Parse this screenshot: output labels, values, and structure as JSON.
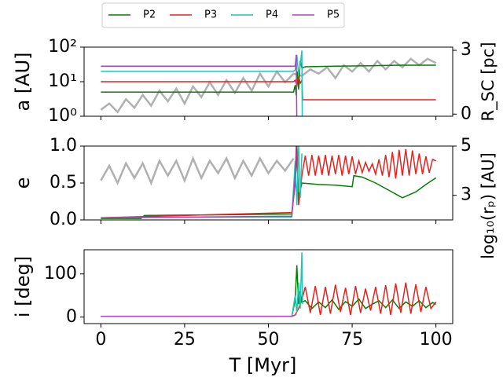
{
  "chart_data": [
    {
      "type": "line",
      "ylabel": "a [AU]",
      "y2label": "R_SC [pc]",
      "log": true,
      "legend": "upper center",
      "sharex": true,
      "xlim": [
        -5,
        105
      ],
      "xticks": [
        0,
        25,
        50,
        75,
        100
      ],
      "ylim": [
        1,
        100
      ],
      "yticks": [
        {
          "value": 1,
          "label": "10⁰"
        },
        {
          "value": 10,
          "label": "10¹"
        },
        {
          "value": 100,
          "label": "10²"
        }
      ],
      "y2lim": [
        -0.1,
        3.15
      ],
      "y2ticks": [
        0,
        3
      ],
      "series": [
        {
          "color": "#b0b0b0",
          "axis": "y2",
          "x": [
            0,
            2.5,
            5,
            7.5,
            10,
            12.5,
            15,
            17.5,
            20,
            22.5,
            25,
            27.5,
            30,
            32.5,
            35,
            37.5,
            40,
            42.5,
            45,
            47.5,
            50,
            52.5,
            55,
            57.5,
            60,
            62.5,
            65,
            67.5,
            70,
            72.5,
            75,
            77.5,
            80,
            82.5,
            85,
            87.5,
            90,
            92.5,
            95,
            97.5,
            100
          ],
          "values": [
            0.2,
            0.5,
            0.1,
            0.7,
            0.3,
            0.9,
            0.4,
            1.1,
            0.6,
            1.2,
            0.5,
            1.3,
            0.8,
            1.5,
            0.9,
            1.6,
            1.0,
            1.7,
            1.1,
            1.9,
            1.3,
            2.0,
            1.5,
            1.9,
            1.8,
            2.1,
            1.9,
            2.2,
            1.7,
            2.3,
            2.0,
            2.4,
            2.0,
            2.5,
            2.1,
            2.5,
            2.2,
            2.6,
            2.3,
            2.6,
            2.4
          ]
        },
        {
          "name": "P2",
          "color": "#007f00",
          "x": [
            0,
            57.5,
            58,
            58.3,
            58.6,
            59,
            59.5,
            60,
            61,
            70,
            80,
            90,
            100
          ],
          "values": [
            5,
            5,
            8,
            4,
            20,
            6,
            40,
            25,
            27,
            28,
            29,
            30,
            30
          ]
        },
        {
          "name": "P3",
          "color": "#e8211c",
          "x": [
            0,
            57.5,
            58,
            58.5,
            59,
            59.5,
            60,
            60.2,
            100
          ],
          "values": [
            10,
            10,
            11,
            8,
            14,
            9,
            11,
            3,
            3
          ]
        },
        {
          "name": "P4",
          "color": "#22c4b2",
          "x": [
            0,
            57.5,
            58,
            58.5,
            59,
            59.5,
            60,
            60.1
          ],
          "values": [
            20,
            20,
            22,
            60,
            16,
            30,
            80,
            0.5
          ]
        },
        {
          "name": "P5",
          "color": "#b040c0",
          "x": [
            0,
            58,
            58.3,
            58.5
          ],
          "values": [
            28,
            28,
            60,
            0.5
          ]
        }
      ]
    },
    {
      "type": "line",
      "ylabel": "e",
      "y2label": "log₁₀(rₚ) [AU]",
      "sharex": true,
      "xlim": [
        -5,
        105
      ],
      "xticks": [
        0,
        25,
        50,
        75,
        100
      ],
      "ylim": [
        0,
        1
      ],
      "yticks": [
        {
          "value": 0,
          "label": "0.0"
        },
        0.5,
        {
          "value": 1,
          "label": "1.0"
        }
      ],
      "y2lim": [
        2,
        5
      ],
      "y2ticks": [
        3,
        5
      ],
      "series": [
        {
          "color": "#b0b0b0",
          "axis": "y2",
          "x": [
            0,
            2.5,
            5,
            7.5,
            10,
            12.5,
            15,
            17.5,
            20,
            22.5,
            25,
            27.5,
            30,
            32.5,
            35,
            37.5,
            40,
            42.5,
            45,
            47.5,
            50,
            52.5,
            55,
            57.5
          ],
          "values": [
            3.6,
            4.2,
            3.5,
            4.3,
            3.7,
            4.3,
            3.5,
            4.4,
            3.8,
            4.4,
            3.6,
            4.5,
            3.7,
            4.4,
            3.9,
            4.5,
            3.7,
            4.4,
            3.8,
            4.5,
            3.9,
            4.4,
            4.0,
            4.5
          ]
        },
        {
          "name": "P2",
          "color": "#007f00",
          "x": [
            0,
            12,
            13,
            57,
            58,
            58.5,
            59,
            60,
            65,
            70,
            75,
            75.5,
            78,
            82,
            86,
            90,
            94,
            97,
            100
          ],
          "values": [
            0.02,
            0.02,
            0.06,
            0.08,
            0.5,
            1.0,
            0.3,
            0.5,
            0.48,
            0.47,
            0.45,
            0.6,
            0.58,
            0.5,
            0.4,
            0.3,
            0.38,
            0.48,
            0.57
          ]
        },
        {
          "name": "P3",
          "color": "#e8211c",
          "x": [
            0,
            57,
            58,
            58.5,
            59,
            60,
            61,
            62,
            63,
            64,
            65,
            66,
            67,
            68,
            69,
            70,
            71,
            72,
            73,
            74,
            75,
            76,
            77,
            78,
            79,
            80,
            81,
            82,
            83,
            84,
            85,
            86,
            87,
            88,
            89,
            90,
            91,
            92,
            93,
            94,
            95,
            96,
            97,
            98,
            99,
            100
          ],
          "values": [
            0.03,
            0.1,
            0.5,
            0.9,
            0.2,
            0.6,
            0.87,
            0.6,
            0.88,
            0.6,
            0.87,
            0.61,
            0.88,
            0.6,
            0.87,
            0.62,
            0.88,
            0.6,
            0.87,
            0.62,
            0.86,
            0.62,
            0.8,
            0.64,
            0.78,
            0.66,
            0.76,
            0.62,
            0.82,
            0.6,
            0.88,
            0.58,
            0.92,
            0.56,
            0.95,
            0.6,
            0.96,
            0.6,
            0.94,
            0.62,
            0.9,
            0.62,
            0.86,
            0.64,
            0.82,
            0.8
          ]
        },
        {
          "name": "P4",
          "color": "#22c4b2",
          "x": [
            0,
            57,
            58,
            58.5,
            59,
            59.5,
            60
          ],
          "values": [
            0.03,
            0.04,
            0.8,
            0.2,
            1.0,
            0.3,
            0.9
          ]
        },
        {
          "name": "P5",
          "color": "#b040c0",
          "x": [
            0,
            57,
            58,
            58.3
          ],
          "values": [
            0.03,
            0.05,
            0.6,
            1.0
          ]
        }
      ]
    },
    {
      "type": "line",
      "ylabel": "i [deg]",
      "xlabel": "T [Myr]",
      "xlim": [
        -5,
        105
      ],
      "xticks": [
        0,
        25,
        50,
        75,
        100
      ],
      "ylim": [
        -15,
        156
      ],
      "yticks": [
        0,
        100
      ],
      "series": [
        {
          "name": "P2",
          "color": "#007f00",
          "x": [
            0,
            57,
            58,
            58.5,
            59,
            59.5,
            60,
            61,
            63,
            65,
            67,
            69,
            71,
            73,
            75,
            77,
            79,
            81,
            83,
            85,
            87,
            89,
            91,
            93,
            95,
            97,
            99,
            100
          ],
          "values": [
            2,
            2,
            40,
            120,
            30,
            60,
            35,
            38,
            20,
            35,
            22,
            40,
            18,
            36,
            25,
            42,
            20,
            30,
            38,
            22,
            40,
            20,
            35,
            25,
            38,
            22,
            34,
            30
          ]
        },
        {
          "name": "P3",
          "color": "#e8211c",
          "x": [
            0,
            57,
            58,
            59,
            60,
            61,
            62.5,
            64,
            65.5,
            67,
            68.5,
            70,
            71.5,
            73,
            74.5,
            76,
            77.5,
            79,
            80.5,
            82,
            83.5,
            85,
            86.5,
            88,
            89.5,
            91,
            92.5,
            94,
            95.5,
            97,
            98.5,
            100
          ],
          "values": [
            2,
            2,
            5,
            20,
            40,
            70,
            10,
            72,
            5,
            70,
            8,
            75,
            12,
            68,
            5,
            72,
            10,
            66,
            15,
            70,
            8,
            74,
            5,
            78,
            10,
            80,
            8,
            76,
            12,
            70,
            20,
            35
          ]
        },
        {
          "name": "P4",
          "color": "#22c4b2",
          "x": [
            0,
            57,
            58,
            58.5,
            59,
            59.5,
            60,
            60.2
          ],
          "values": [
            2,
            2,
            50,
            10,
            80,
            20,
            150,
            30
          ]
        },
        {
          "name": "P5",
          "color": "#b040c0",
          "x": [
            0,
            57,
            58
          ],
          "values": [
            2,
            2,
            5
          ]
        }
      ]
    }
  ]
}
